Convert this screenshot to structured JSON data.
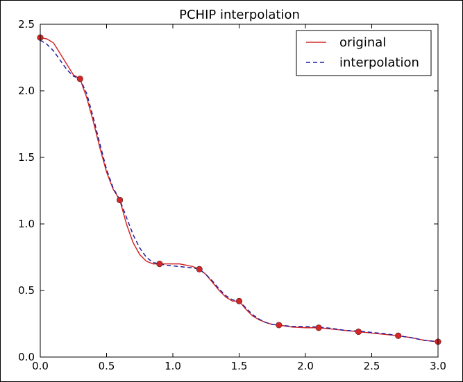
{
  "chart_data": {
    "type": "line",
    "title": "PCHIP interpolation",
    "xlabel": "",
    "ylabel": "",
    "xlim": [
      0.0,
      3.0
    ],
    "ylim": [
      0.0,
      2.5
    ],
    "xticks": [
      "0.0",
      "0.5",
      "1.0",
      "1.5",
      "2.0",
      "2.5",
      "3.0"
    ],
    "yticks": [
      "0.0",
      "0.5",
      "1.0",
      "1.5",
      "2.0",
      "2.5"
    ],
    "grid": false,
    "legend_position": "top-right",
    "series": [
      {
        "name": "original",
        "style": "solid",
        "color": "#d62728",
        "x": [
          0.0,
          0.05,
          0.1,
          0.15,
          0.2,
          0.25,
          0.3,
          0.35,
          0.4,
          0.45,
          0.5,
          0.55,
          0.6,
          0.65,
          0.7,
          0.75,
          0.8,
          0.85,
          0.9,
          0.95,
          1.0,
          1.05,
          1.1,
          1.15,
          1.2,
          1.25,
          1.3,
          1.35,
          1.4,
          1.45,
          1.5,
          1.55,
          1.6,
          1.65,
          1.7,
          1.75,
          1.8,
          1.9,
          2.0,
          2.1,
          2.2,
          2.3,
          2.4,
          2.5,
          2.6,
          2.7,
          2.8,
          2.9,
          3.0
        ],
        "y": [
          2.4,
          2.39,
          2.36,
          2.28,
          2.2,
          2.12,
          2.09,
          1.95,
          1.77,
          1.57,
          1.39,
          1.26,
          1.18,
          1.0,
          0.86,
          0.77,
          0.72,
          0.7,
          0.7,
          0.7,
          0.7,
          0.7,
          0.69,
          0.68,
          0.66,
          0.62,
          0.56,
          0.5,
          0.45,
          0.42,
          0.42,
          0.36,
          0.31,
          0.28,
          0.26,
          0.245,
          0.24,
          0.225,
          0.22,
          0.22,
          0.21,
          0.2,
          0.19,
          0.18,
          0.17,
          0.16,
          0.145,
          0.125,
          0.115
        ]
      },
      {
        "name": "interpolation",
        "style": "dashed",
        "color": "#1f1f9f",
        "x": [
          0.0,
          0.05,
          0.1,
          0.15,
          0.2,
          0.25,
          0.3,
          0.35,
          0.4,
          0.45,
          0.5,
          0.55,
          0.6,
          0.65,
          0.7,
          0.75,
          0.8,
          0.85,
          0.9,
          0.95,
          1.0,
          1.05,
          1.1,
          1.15,
          1.2,
          1.25,
          1.3,
          1.35,
          1.4,
          1.45,
          1.5,
          1.55,
          1.6,
          1.65,
          1.7,
          1.75,
          1.8,
          1.9,
          2.0,
          2.1,
          2.2,
          2.3,
          2.4,
          2.5,
          2.6,
          2.7,
          2.8,
          2.9,
          3.0
        ],
        "y": [
          2.38,
          2.35,
          2.3,
          2.23,
          2.16,
          2.11,
          2.09,
          1.98,
          1.8,
          1.6,
          1.41,
          1.27,
          1.18,
          1.05,
          0.92,
          0.82,
          0.75,
          0.71,
          0.7,
          0.69,
          0.685,
          0.68,
          0.675,
          0.67,
          0.66,
          0.62,
          0.57,
          0.51,
          0.46,
          0.43,
          0.42,
          0.37,
          0.32,
          0.285,
          0.26,
          0.245,
          0.24,
          0.23,
          0.23,
          0.225,
          0.215,
          0.2,
          0.195,
          0.185,
          0.175,
          0.16,
          0.145,
          0.125,
          0.115
        ]
      }
    ],
    "markers": {
      "color": "#d62728",
      "x": [
        0.0,
        0.3,
        0.6,
        0.9,
        1.2,
        1.5,
        1.8,
        2.1,
        2.4,
        2.7,
        3.0
      ],
      "y": [
        2.4,
        2.09,
        1.18,
        0.7,
        0.66,
        0.42,
        0.24,
        0.22,
        0.19,
        0.16,
        0.115
      ]
    }
  }
}
